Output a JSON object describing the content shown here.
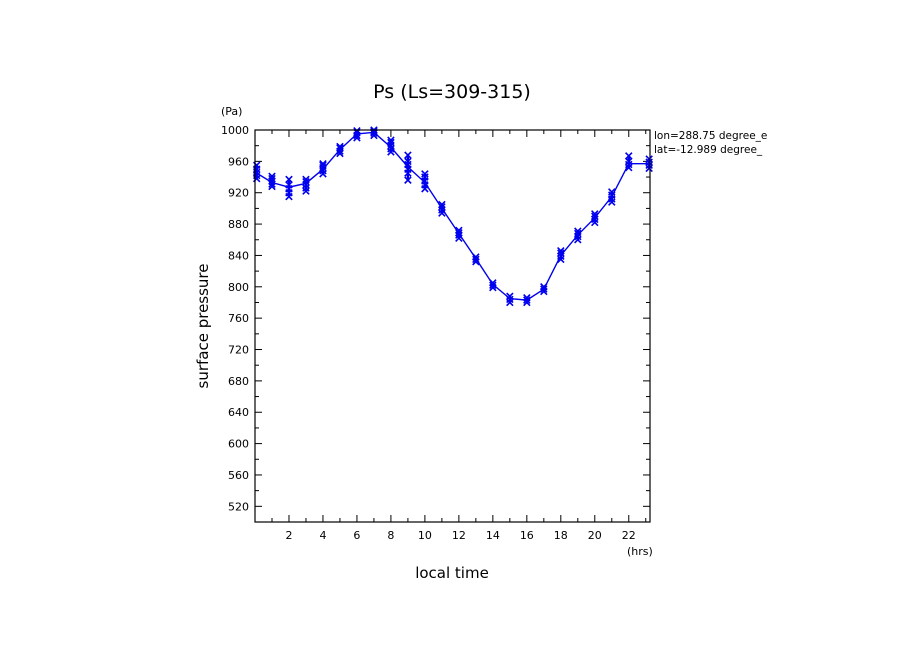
{
  "chart_data": {
    "type": "line",
    "title": "Ps (Ls=309-315)",
    "xlabel": "local time",
    "x_unit": "(hrs)",
    "ylabel": "surface pressure",
    "y_unit": "(Pa)",
    "annotations": [
      "lon=288.75 degree_e",
      "lat=-12.989 degree_"
    ],
    "xlim": [
      0,
      23.25
    ],
    "ylim": [
      500,
      1000
    ],
    "x_ticks": [
      2,
      4,
      6,
      8,
      10,
      12,
      14,
      16,
      18,
      20,
      22
    ],
    "y_ticks": [
      520,
      560,
      600,
      640,
      680,
      720,
      760,
      800,
      840,
      880,
      920,
      960,
      1000
    ],
    "grid": false,
    "series_color": "#0000ee",
    "series": [
      {
        "line": {
          "x": [
            0.1,
            1.0,
            2.0,
            3.0,
            4.0,
            5.0,
            6.0,
            7.0,
            8.0,
            9.0,
            10.0,
            11.0,
            12.0,
            13.0,
            14.0,
            15.0,
            16.0,
            17.0,
            18.0,
            19.0,
            20.0,
            21.0,
            22.0,
            23.2
          ],
          "y": [
            945,
            933,
            927,
            932,
            950,
            975,
            995,
            997,
            978,
            953,
            933,
            900,
            868,
            836,
            803,
            785,
            783,
            797,
            840,
            866,
            888,
            915,
            957,
            957
          ]
        },
        "samples": [
          {
            "x": 0.1,
            "y": [
              938,
              942,
              946,
              950,
              955
            ]
          },
          {
            "x": 1.0,
            "y": [
              928,
              931,
              935,
              938,
              941
            ]
          },
          {
            "x": 2.0,
            "y": [
              915,
              920,
              925,
              930,
              937
            ]
          },
          {
            "x": 3.0,
            "y": [
              922,
              926,
              930,
              934,
              937
            ]
          },
          {
            "x": 4.0,
            "y": [
              944,
              948,
              952,
              955,
              957
            ]
          },
          {
            "x": 5.0,
            "y": [
              970,
              973,
              977,
              979
            ]
          },
          {
            "x": 6.0,
            "y": [
              990,
              993,
              997,
              999
            ]
          },
          {
            "x": 7.0,
            "y": [
              993,
              996,
              998,
              1000
            ]
          },
          {
            "x": 8.0,
            "y": [
              972,
              976,
              980,
              984,
              987
            ]
          },
          {
            "x": 9.0,
            "y": [
              936,
              945,
              950,
              956,
              960,
              968
            ]
          },
          {
            "x": 10.0,
            "y": [
              925,
              930,
              935,
              940,
              944
            ]
          },
          {
            "x": 11.0,
            "y": [
              894,
              898,
              902,
              905
            ]
          },
          {
            "x": 12.0,
            "y": [
              862,
              866,
              869,
              872
            ]
          },
          {
            "x": 13.0,
            "y": [
              832,
              835,
              838
            ]
          },
          {
            "x": 14.0,
            "y": [
              799,
              802,
              805
            ]
          },
          {
            "x": 15.0,
            "y": [
              780,
              784,
              788
            ]
          },
          {
            "x": 16.0,
            "y": [
              780,
              783,
              786
            ]
          },
          {
            "x": 17.0,
            "y": [
              794,
              797,
              800
            ]
          },
          {
            "x": 18.0,
            "y": [
              835,
              839,
              843,
              846
            ]
          },
          {
            "x": 19.0,
            "y": [
              860,
              864,
              868,
              871
            ]
          },
          {
            "x": 20.0,
            "y": [
              882,
              886,
              890,
              893
            ]
          },
          {
            "x": 21.0,
            "y": [
              908,
              912,
              917,
              921
            ]
          },
          {
            "x": 22.0,
            "y": [
              952,
              956,
              960,
              967
            ]
          },
          {
            "x": 23.2,
            "y": [
              951,
              955,
              959,
              963
            ]
          }
        ]
      }
    ]
  }
}
